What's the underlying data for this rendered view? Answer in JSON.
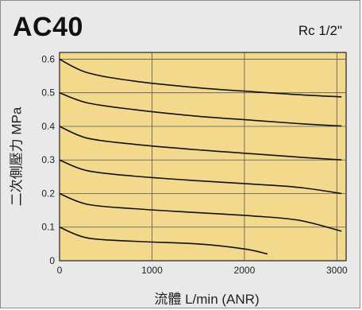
{
  "header": {
    "model": "AC40",
    "port": "Rc 1/2\""
  },
  "chart_data": {
    "type": "line",
    "title": "AC40",
    "subtitle": "Rc 1/2\"",
    "xlabel": "流體 L/min (ANR)",
    "ylabel": "二次側壓力 MPa",
    "xlim": [
      0,
      3100
    ],
    "ylim": [
      0,
      0.62
    ],
    "xticks": [
      0,
      1000,
      2000,
      3000
    ],
    "yticks": [
      0,
      0.1,
      0.2,
      0.3,
      0.4,
      0.5,
      0.6
    ],
    "grid": true,
    "background": "#f2d98c",
    "line_color": "#111111",
    "series": [
      {
        "x": [
          0,
          300,
          800,
          1500,
          2100,
          2600,
          3050
        ],
        "y": [
          0.6,
          0.56,
          0.535,
          0.515,
          0.503,
          0.494,
          0.488
        ]
      },
      {
        "x": [
          0,
          300,
          800,
          1500,
          2100,
          2600,
          3050
        ],
        "y": [
          0.5,
          0.47,
          0.45,
          0.43,
          0.418,
          0.408,
          0.401
        ]
      },
      {
        "x": [
          0,
          300,
          800,
          1500,
          2100,
          2600,
          3050
        ],
        "y": [
          0.4,
          0.365,
          0.347,
          0.33,
          0.318,
          0.308,
          0.3
        ]
      },
      {
        "x": [
          0,
          300,
          800,
          1500,
          2100,
          2600,
          3050
        ],
        "y": [
          0.3,
          0.268,
          0.252,
          0.238,
          0.228,
          0.218,
          0.2
        ]
      },
      {
        "x": [
          0,
          300,
          800,
          1500,
          2100,
          2600,
          3050
        ],
        "y": [
          0.2,
          0.168,
          0.155,
          0.143,
          0.133,
          0.12,
          0.088
        ]
      },
      {
        "x": [
          0,
          300,
          800,
          1500,
          2000,
          2250
        ],
        "y": [
          0.1,
          0.068,
          0.058,
          0.05,
          0.035,
          0.02
        ]
      }
    ]
  }
}
